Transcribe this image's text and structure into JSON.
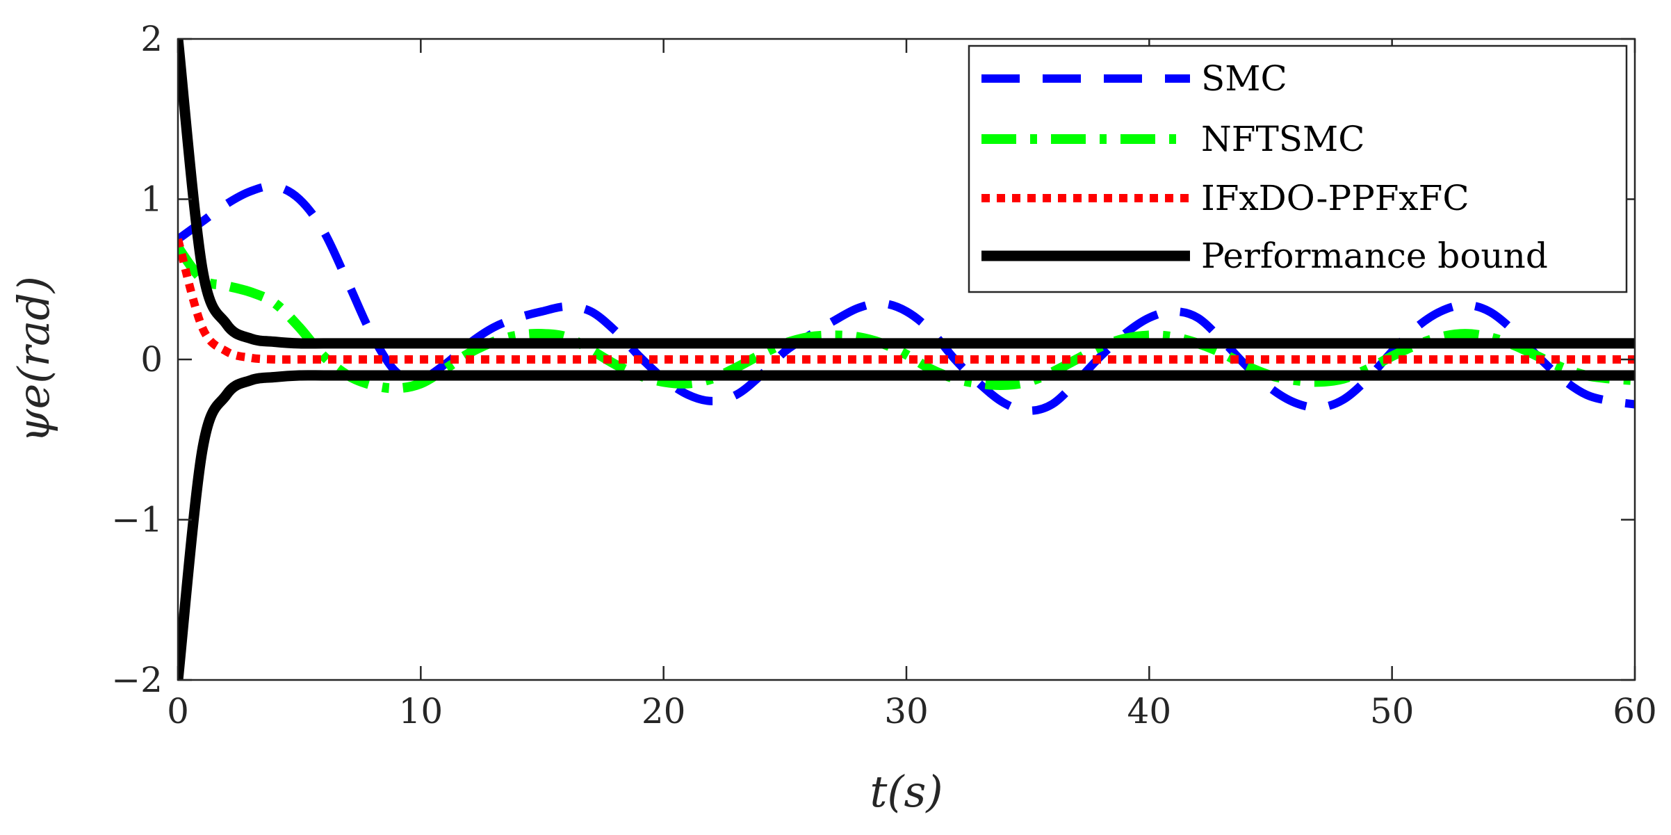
{
  "chart_data": {
    "type": "line",
    "title": "",
    "xlabel": "t(s)",
    "ylabel": "ψe(rad)",
    "xlim": [
      0,
      60
    ],
    "ylim": [
      -2,
      2
    ],
    "xticks": [
      0,
      10,
      20,
      30,
      40,
      50,
      60
    ],
    "xtick_labels": [
      "0",
      "10",
      "20",
      "30",
      "40",
      "50",
      "60"
    ],
    "yticks": [
      -2,
      -1,
      0,
      1,
      2
    ],
    "ytick_labels": [
      "−2",
      "−1",
      "0",
      "1",
      "2"
    ],
    "grid": false,
    "legend_position": "top-right",
    "x": [
      0,
      1,
      2,
      3,
      4,
      5,
      6,
      7,
      8,
      9,
      10,
      11,
      12,
      13,
      14,
      15,
      16,
      17,
      18,
      19,
      20,
      21,
      22,
      23,
      24,
      25,
      26,
      27,
      28,
      29,
      30,
      31,
      32,
      33,
      34,
      35,
      36,
      37,
      38,
      39,
      40,
      41,
      42,
      43,
      44,
      45,
      46,
      47,
      48,
      49,
      50,
      51,
      52,
      53,
      54,
      55,
      56,
      57,
      58,
      59,
      60
    ],
    "series": [
      {
        "name": "SMC",
        "color": "#0000ff",
        "style": "dashed",
        "values": [
          0.75,
          0.86,
          0.97,
          1.05,
          1.08,
          1.0,
          0.8,
          0.48,
          0.15,
          -0.08,
          -0.12,
          -0.03,
          0.1,
          0.2,
          0.26,
          0.3,
          0.33,
          0.3,
          0.18,
          0.02,
          -0.12,
          -0.22,
          -0.26,
          -0.22,
          -0.1,
          0.05,
          0.15,
          0.24,
          0.32,
          0.35,
          0.3,
          0.18,
          0.0,
          -0.15,
          -0.27,
          -0.32,
          -0.28,
          -0.14,
          0.02,
          0.16,
          0.26,
          0.3,
          0.26,
          0.12,
          -0.04,
          -0.18,
          -0.27,
          -0.3,
          -0.25,
          -0.12,
          0.05,
          0.2,
          0.3,
          0.34,
          0.3,
          0.18,
          0.02,
          -0.12,
          -0.22,
          -0.26,
          -0.28
        ]
      },
      {
        "name": "NFTSMC",
        "color": "#00ff00",
        "style": "dashdot",
        "values": [
          0.7,
          0.5,
          0.46,
          0.42,
          0.35,
          0.2,
          0.02,
          -0.1,
          -0.16,
          -0.18,
          -0.15,
          -0.06,
          0.04,
          0.11,
          0.15,
          0.16,
          0.14,
          0.06,
          -0.03,
          -0.1,
          -0.14,
          -0.15,
          -0.12,
          -0.05,
          0.03,
          0.1,
          0.14,
          0.15,
          0.14,
          0.1,
          0.03,
          -0.06,
          -0.12,
          -0.15,
          -0.16,
          -0.14,
          -0.08,
          0.0,
          0.08,
          0.13,
          0.15,
          0.14,
          0.1,
          0.04,
          -0.04,
          -0.1,
          -0.13,
          -0.14,
          -0.12,
          -0.06,
          0.02,
          0.09,
          0.14,
          0.16,
          0.14,
          0.09,
          0.02,
          -0.05,
          -0.1,
          -0.12,
          -0.13
        ]
      },
      {
        "name": "IFxDO-PPFxFC",
        "color": "#ff0000",
        "style": "dotted",
        "values": [
          0.75,
          0.2,
          0.05,
          0.01,
          0,
          0,
          0,
          0,
          0,
          0,
          0,
          0,
          0,
          0,
          0,
          0,
          0,
          0,
          0,
          0,
          0,
          0,
          0,
          0,
          0,
          0,
          0,
          0,
          0,
          0,
          0,
          0,
          0,
          0,
          0,
          0,
          0,
          0,
          0,
          0,
          0,
          0,
          0,
          0,
          0,
          0,
          0,
          0,
          0,
          0,
          0,
          0,
          0,
          0,
          0,
          0,
          0,
          0,
          0,
          0,
          0
        ]
      },
      {
        "name": "Performance bound",
        "color": "#000000",
        "style": "solid",
        "upper_values": [
          2.0,
          0.57,
          0.22,
          0.13,
          0.11,
          0.1,
          0.1,
          0.1,
          0.1,
          0.1,
          0.1,
          0.1,
          0.1,
          0.1,
          0.1,
          0.1,
          0.1,
          0.1,
          0.1,
          0.1,
          0.1,
          0.1,
          0.1,
          0.1,
          0.1,
          0.1,
          0.1,
          0.1,
          0.1,
          0.1,
          0.1,
          0.1,
          0.1,
          0.1,
          0.1,
          0.1,
          0.1,
          0.1,
          0.1,
          0.1,
          0.1,
          0.1,
          0.1,
          0.1,
          0.1,
          0.1,
          0.1,
          0.1,
          0.1,
          0.1,
          0.1,
          0.1,
          0.1,
          0.1,
          0.1,
          0.1,
          0.1,
          0.1,
          0.1,
          0.1,
          0.1
        ],
        "lower_values": [
          -2.0,
          -0.57,
          -0.22,
          -0.13,
          -0.11,
          -0.1,
          -0.1,
          -0.1,
          -0.1,
          -0.1,
          -0.1,
          -0.1,
          -0.1,
          -0.1,
          -0.1,
          -0.1,
          -0.1,
          -0.1,
          -0.1,
          -0.1,
          -0.1,
          -0.1,
          -0.1,
          -0.1,
          -0.1,
          -0.1,
          -0.1,
          -0.1,
          -0.1,
          -0.1,
          -0.1,
          -0.1,
          -0.1,
          -0.1,
          -0.1,
          -0.1,
          -0.1,
          -0.1,
          -0.1,
          -0.1,
          -0.1,
          -0.1,
          -0.1,
          -0.1,
          -0.1,
          -0.1,
          -0.1,
          -0.1,
          -0.1,
          -0.1,
          -0.1,
          -0.1,
          -0.1,
          -0.1,
          -0.1,
          -0.1,
          -0.1,
          -0.1,
          -0.1,
          -0.1,
          -0.1
        ]
      }
    ]
  }
}
